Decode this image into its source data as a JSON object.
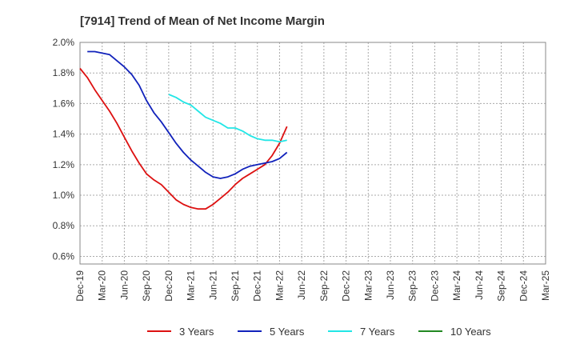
{
  "chart_data": {
    "type": "line",
    "title": "[7914]  Trend of Mean of Net Income Margin",
    "xlabel": "",
    "ylabel": "",
    "x_ticks": [
      "Dec-19",
      "Mar-20",
      "Jun-20",
      "Sep-20",
      "Dec-20",
      "Mar-21",
      "Jun-21",
      "Sep-21",
      "Dec-21",
      "Mar-22",
      "Jun-22",
      "Sep-22",
      "Dec-22",
      "Mar-23",
      "Jun-23",
      "Sep-23",
      "Dec-23",
      "Mar-24",
      "Jun-24",
      "Sep-24",
      "Dec-24",
      "Mar-25"
    ],
    "y_ticks": [
      "0.6%",
      "0.8%",
      "1.0%",
      "1.2%",
      "1.4%",
      "1.6%",
      "1.8%",
      "2.0%"
    ],
    "ylim": [
      0.55,
      2.0
    ],
    "grid": true,
    "legend_position": "bottom",
    "series": [
      {
        "name": "3 Years",
        "color": "#dd1111",
        "points": [
          [
            0,
            1.83
          ],
          [
            1,
            1.77
          ],
          [
            2,
            1.69
          ],
          [
            3,
            1.62
          ],
          [
            4,
            1.55
          ],
          [
            5,
            1.47
          ],
          [
            6,
            1.38
          ],
          [
            7,
            1.29
          ],
          [
            8,
            1.21
          ],
          [
            9,
            1.14
          ],
          [
            10,
            1.1
          ],
          [
            11,
            1.07
          ],
          [
            12,
            1.02
          ],
          [
            13,
            0.97
          ],
          [
            14,
            0.94
          ],
          [
            15,
            0.92
          ],
          [
            16,
            0.91
          ],
          [
            17,
            0.91
          ],
          [
            18,
            0.94
          ],
          [
            19,
            0.98
          ],
          [
            20,
            1.02
          ],
          [
            21,
            1.07
          ],
          [
            22,
            1.11
          ],
          [
            23,
            1.14
          ],
          [
            24,
            1.17
          ],
          [
            25,
            1.2
          ],
          [
            26,
            1.26
          ],
          [
            27,
            1.34
          ],
          [
            28,
            1.45
          ]
        ]
      },
      {
        "name": "5 Years",
        "color": "#1122bb",
        "points": [
          [
            1,
            1.94
          ],
          [
            2,
            1.94
          ],
          [
            3,
            1.93
          ],
          [
            4,
            1.92
          ],
          [
            5,
            1.88
          ],
          [
            6,
            1.84
          ],
          [
            7,
            1.79
          ],
          [
            8,
            1.72
          ],
          [
            9,
            1.62
          ],
          [
            10,
            1.54
          ],
          [
            11,
            1.48
          ],
          [
            12,
            1.41
          ],
          [
            13,
            1.34
          ],
          [
            14,
            1.28
          ],
          [
            15,
            1.23
          ],
          [
            16,
            1.19
          ],
          [
            17,
            1.15
          ],
          [
            18,
            1.12
          ],
          [
            19,
            1.11
          ],
          [
            20,
            1.12
          ],
          [
            21,
            1.14
          ],
          [
            22,
            1.17
          ],
          [
            23,
            1.19
          ],
          [
            24,
            1.2
          ],
          [
            25,
            1.21
          ],
          [
            26,
            1.22
          ],
          [
            27,
            1.24
          ],
          [
            28,
            1.28
          ]
        ]
      },
      {
        "name": "7 Years",
        "color": "#22e6e6",
        "points": [
          [
            12,
            1.66
          ],
          [
            13,
            1.64
          ],
          [
            14,
            1.61
          ],
          [
            15,
            1.59
          ],
          [
            16,
            1.55
          ],
          [
            17,
            1.51
          ],
          [
            18,
            1.49
          ],
          [
            19,
            1.47
          ],
          [
            20,
            1.44
          ],
          [
            21,
            1.44
          ],
          [
            22,
            1.42
          ],
          [
            23,
            1.39
          ],
          [
            24,
            1.37
          ],
          [
            25,
            1.36
          ],
          [
            26,
            1.36
          ],
          [
            27,
            1.35
          ],
          [
            28,
            1.36
          ]
        ]
      },
      {
        "name": "10 Years",
        "color": "#228822",
        "points": []
      }
    ]
  }
}
